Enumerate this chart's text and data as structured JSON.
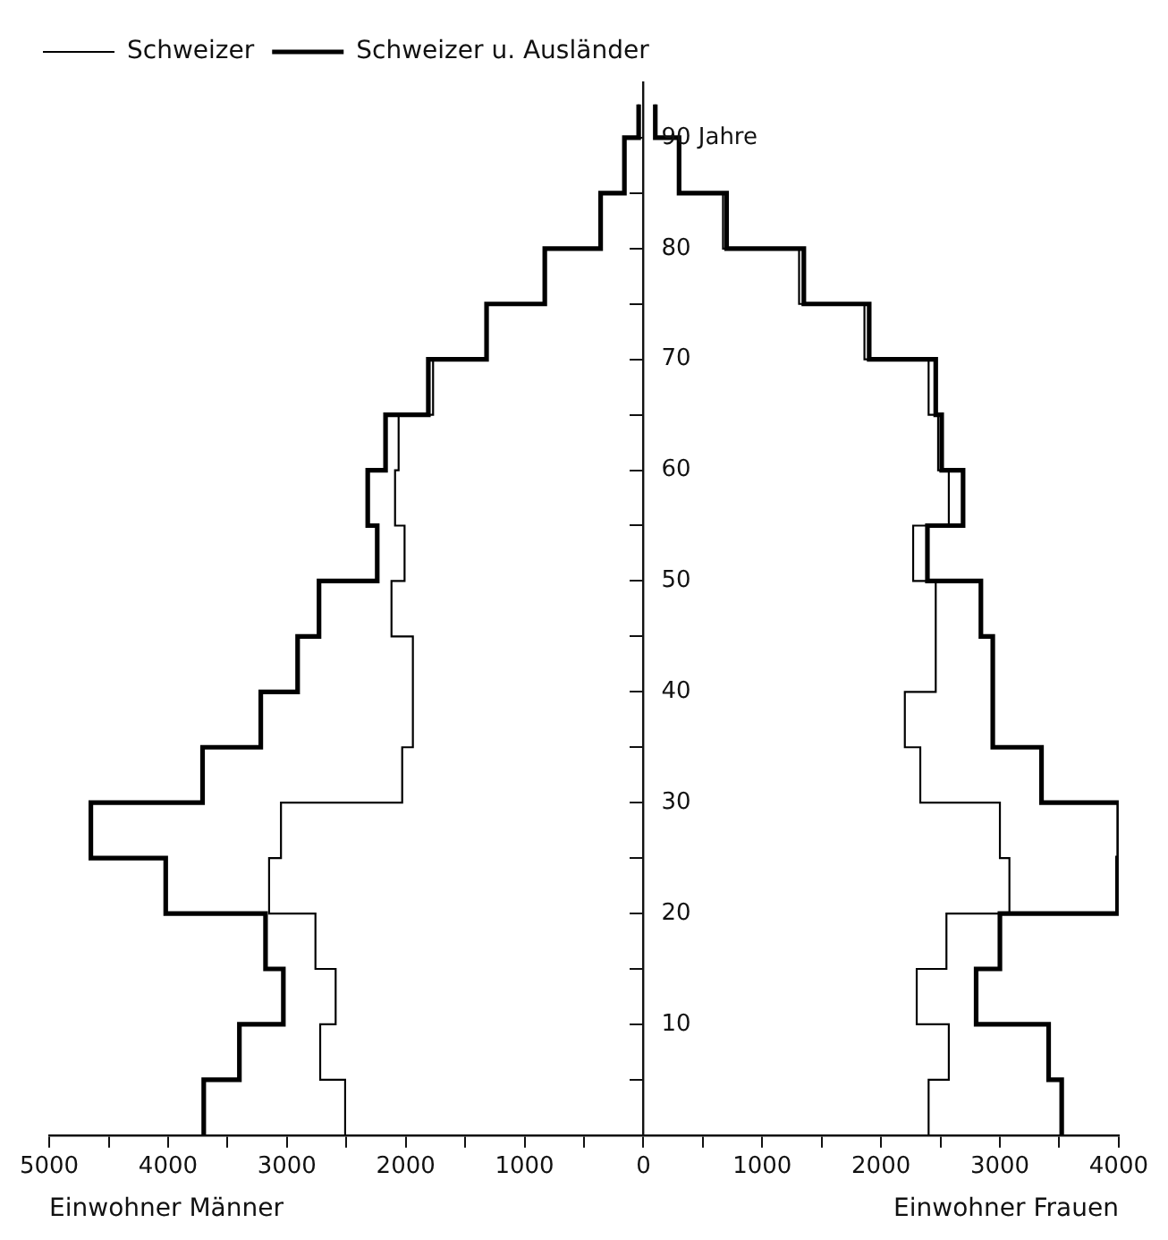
{
  "chart_data": {
    "type": "histogram",
    "orientation": "horizontal",
    "bins": [
      0,
      5,
      10,
      15,
      20,
      25,
      30,
      35,
      40,
      45,
      50,
      55,
      60,
      65,
      70,
      75,
      80,
      85,
      90,
      93
    ],
    "series": [
      {
        "name": "Schweizer",
        "color": "#000000",
        "values": [
          -2510,
          -2720,
          -2590,
          -2760,
          -3150,
          -3050,
          -2030,
          -1940,
          -1940,
          -2120,
          -2010,
          -2090,
          -2060,
          -1770,
          -1320,
          -830,
          -360,
          -160,
          -40
        ]
      },
      {
        "name": "Schweizer u. Ausländer",
        "color": "#000000",
        "values": [
          -3700,
          -3400,
          -3030,
          -3180,
          -4020,
          -4650,
          -3710,
          -3220,
          -2910,
          -2730,
          -2240,
          -2320,
          -2170,
          -1810,
          -1320,
          -830,
          -360,
          -160,
          -40
        ]
      },
      {
        "color": "#000000",
        "values": [
          2400,
          2570,
          2300,
          2550,
          3080,
          3000,
          2330,
          2200,
          2460,
          2460,
          2270,
          2570,
          2480,
          2400,
          1860,
          1310,
          670,
          300,
          100
        ]
      },
      {
        "color": "#000000",
        "values": [
          3520,
          3410,
          2800,
          3000,
          3990,
          4000,
          3350,
          2940,
          2940,
          2840,
          2390,
          2690,
          2510,
          2460,
          1900,
          1350,
          700,
          300,
          100
        ]
      }
    ],
    "xlim": [
      -5000,
      4000
    ],
    "xticks": [
      {
        "value": -5000,
        "label": "5000"
      },
      {
        "value": -4500,
        "label": null
      },
      {
        "value": -4000,
        "label": "4000"
      },
      {
        "value": -3500,
        "label": null
      },
      {
        "value": -3000,
        "label": "3000"
      },
      {
        "value": -2500,
        "label": null
      },
      {
        "value": -2000,
        "label": "2000"
      },
      {
        "value": -1500,
        "label": null
      },
      {
        "value": -1000,
        "label": "1000"
      },
      {
        "value": -500,
        "label": null
      },
      0,
      {
        "value": 500,
        "label": null
      },
      1000,
      {
        "value": 1500,
        "label": null
      },
      2000,
      {
        "value": 2500,
        "label": null
      },
      3000,
      {
        "value": 3500,
        "label": null
      },
      4000
    ],
    "ylim": [
      0,
      95
    ],
    "yticks": [
      {
        "value": 5,
        "label": null
      },
      10,
      {
        "value": 15,
        "label": null
      },
      20,
      {
        "value": 25,
        "label": null
      },
      30,
      {
        "value": 35,
        "label": null
      },
      40,
      {
        "value": 45,
        "label": null
      },
      50,
      {
        "value": 55,
        "label": null
      },
      60,
      {
        "value": 65,
        "label": null
      },
      70,
      {
        "value": 75,
        "label": null
      },
      80,
      {
        "value": 85,
        "label": null
      },
      {
        "value": 90,
        "label": "90 Jahre"
      }
    ],
    "annotations": [
      "Einwohner Männer",
      "Einwohner Frauen"
    ],
    "legend": "top left"
  }
}
